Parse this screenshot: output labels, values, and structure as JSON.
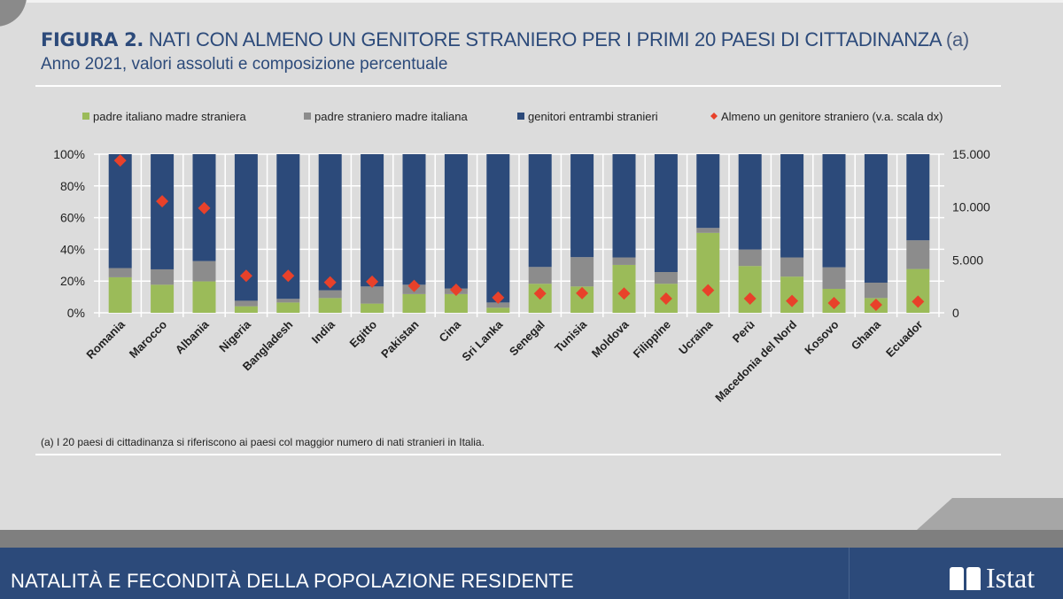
{
  "header": {
    "figure_label": "FIGURA 2.",
    "title": "NATI CON ALMENO UN GENITORE STRANIERO PER I PRIMI 20 PAESI DI CITTADINANZA",
    "title_suffix": "(a)",
    "subtitle": "Anno 2021, valori assoluti e composizione percentuale"
  },
  "note": "(a) I 20 paesi di cittadinanza si riferiscono ai paesi col maggior numero di nati stranieri in Italia.",
  "footer": {
    "text": "NATALITÀ E FECONDITÀ DELLA POPOLAZIONE RESIDENTE",
    "logo": "Istat"
  },
  "chart_data": {
    "type": "bar",
    "stacked": true,
    "categories": [
      "Romania",
      "Marocco",
      "Albania",
      "Nigeria",
      "Bangladesh",
      "India",
      "Egitto",
      "Pakistan",
      "Cina",
      "Sri Lanka",
      "Senegal",
      "Tunisia",
      "Moldova",
      "Filippine",
      "Ucraina",
      "Perù",
      "Macedonia del Nord",
      "Kosovo",
      "Ghana",
      "Ecuador"
    ],
    "series": [
      {
        "name": "padre italiano madre straniera",
        "color": "#9bbb59",
        "axis": "left",
        "values": [
          22.4,
          17.7,
          19.8,
          4.1,
          6.5,
          9.3,
          5.8,
          11.8,
          11.8,
          3.2,
          18.3,
          16.6,
          30.2,
          18.3,
          50.4,
          29.5,
          22.8,
          15.1,
          9.3,
          27.6
        ]
      },
      {
        "name": "padre straniero madre italiana",
        "color": "#8c8c8c",
        "axis": "left",
        "values": [
          5.8,
          9.7,
          12.8,
          3.5,
          2.3,
          4.9,
          10.8,
          5.9,
          3.5,
          3.3,
          10.6,
          18.5,
          4.7,
          7.4,
          3.1,
          10.4,
          12.1,
          13.6,
          9.7,
          18.1
        ]
      },
      {
        "name": "genitori entrambi stranieri",
        "color": "#2c4a7a",
        "axis": "left",
        "values": [
          71.8,
          72.6,
          67.4,
          92.4,
          91.2,
          85.8,
          83.4,
          82.3,
          84.7,
          93.5,
          71.1,
          64.9,
          65.1,
          74.3,
          46.5,
          60.1,
          65.1,
          71.3,
          81.0,
          54.3
        ]
      },
      {
        "name": "Almeno un genitore straniero (v.a. scala dx)",
        "color": "#e8412a",
        "axis": "right",
        "marker": "diamond",
        "values": [
          14400,
          10550,
          9900,
          3500,
          3500,
          2880,
          2940,
          2550,
          2180,
          1430,
          1820,
          1850,
          1820,
          1340,
          2130,
          1340,
          1120,
          920,
          755,
          1060
        ]
      }
    ],
    "left_axis": {
      "ylim": [
        0,
        100
      ],
      "ticks": [
        "0%",
        "20%",
        "40%",
        "60%",
        "80%",
        "100%"
      ]
    },
    "right_axis": {
      "ylim": [
        0,
        15000
      ],
      "ticks": [
        "0",
        "5.000",
        "10.000",
        "15.000"
      ]
    },
    "grid": true,
    "legend_position": "top"
  }
}
